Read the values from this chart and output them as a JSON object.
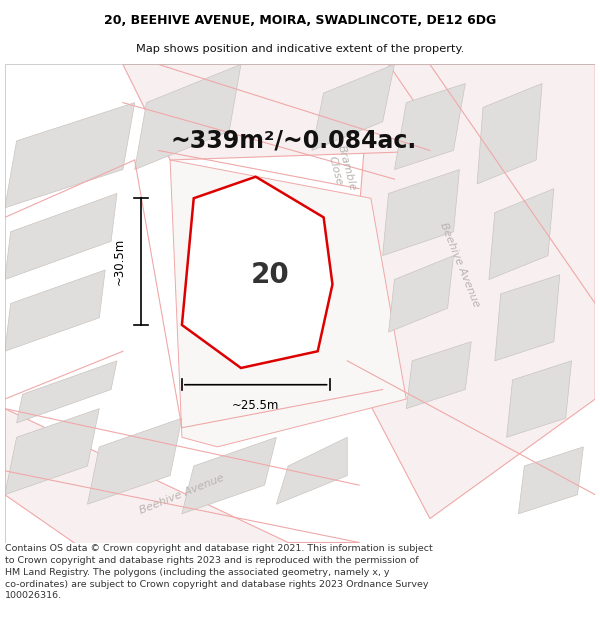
{
  "title_line1": "20, BEEHIVE AVENUE, MOIRA, SWADLINCOTE, DE12 6DG",
  "title_line2": "Map shows position and indicative extent of the property.",
  "area_text": "~339m²/~0.084ac.",
  "label_number": "20",
  "dim_width": "~25.5m",
  "dim_height": "~30.5m",
  "footer_text": "Contains OS data © Crown copyright and database right 2021. This information is subject to Crown copyright and database rights 2023 and is reproduced with the permission of HM Land Registry. The polygons (including the associated geometry, namely x, y co-ordinates) are subject to Crown copyright and database rights 2023 Ordnance Survey 100026316.",
  "map_bg": "#f5f4f2",
  "plot_outline_color": "#dd0000",
  "road_fill": "#f8f0f0",
  "road_outline": "#f0a8a8",
  "building_fill": "#e0dedd",
  "building_outline": "#c8c4c0",
  "title_fontsize": 9.0,
  "subtitle_fontsize": 8.2,
  "area_fontsize": 17,
  "label_fontsize": 20,
  "footer_fontsize": 6.8,
  "dim_fontsize": 8.5,
  "street_fontsize": 8.0,
  "street_color": "#b8b4b0"
}
